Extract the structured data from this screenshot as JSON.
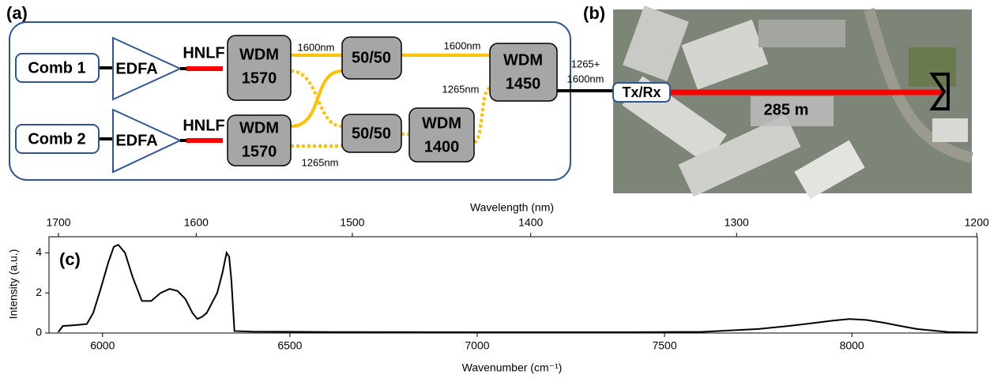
{
  "panels": {
    "a": "(a)",
    "b": "(b)",
    "c": "(c)"
  },
  "diagram": {
    "sources": [
      "Comb 1",
      "Comb 2"
    ],
    "amplifiers": [
      "EDFA",
      "EDFA"
    ],
    "fibers": [
      "HNLF",
      "HNLF"
    ],
    "wdm_top": [
      "WDM",
      "1570"
    ],
    "wdm_bottom": [
      "WDM",
      "1570"
    ],
    "splitters": [
      "50/50",
      "50/50"
    ],
    "wdm_1400": [
      "WDM",
      "1400"
    ],
    "wdm_1450": [
      "WDM",
      "1450"
    ],
    "edge_labels": [
      "1600nm",
      "1600nm",
      "1265nm",
      "1265nm"
    ],
    "output_label": [
      "1265+",
      "1600nm"
    ]
  },
  "photo": {
    "transceiver": "Tx/Rx",
    "distance": "285 m"
  },
  "chart_data": {
    "type": "line",
    "xlabel": "Wavenumber (cm⁻¹)",
    "x2label": "Wavelength (nm)",
    "ylabel": "Intensity (a.u.)",
    "xlim": [
      5857,
      8335
    ],
    "xticks": [
      6000,
      6500,
      7000,
      7500,
      8000
    ],
    "x2ticks": [
      1700,
      1600,
      1500,
      1400,
      1300,
      1200
    ],
    "ylim": [
      0,
      4.8
    ],
    "yticks": [
      0,
      2,
      4
    ],
    "color": "#000000",
    "x": [
      5882,
      5894,
      5930,
      5958,
      5975,
      5995,
      6015,
      6030,
      6042,
      6060,
      6080,
      6105,
      6130,
      6155,
      6179,
      6200,
      6221,
      6240,
      6253,
      6265,
      6278,
      6292,
      6306,
      6320,
      6331,
      6338,
      6344,
      6352,
      6400,
      6600,
      7000,
      7400,
      7600,
      7751,
      7830,
      7899,
      7950,
      7994,
      8040,
      8089,
      8130,
      8173,
      8257,
      8335
    ],
    "values": [
      0.05,
      0.35,
      0.4,
      0.45,
      1.0,
      2.2,
      3.5,
      4.3,
      4.4,
      4.0,
      2.8,
      1.6,
      1.6,
      2.0,
      2.2,
      2.1,
      1.7,
      1.0,
      0.7,
      0.8,
      1.0,
      1.5,
      2.0,
      3.0,
      4.0,
      3.8,
      2.6,
      0.1,
      0.07,
      0.05,
      0.04,
      0.04,
      0.06,
      0.2,
      0.35,
      0.5,
      0.62,
      0.7,
      0.65,
      0.5,
      0.35,
      0.2,
      0.05,
      0.02
    ]
  }
}
